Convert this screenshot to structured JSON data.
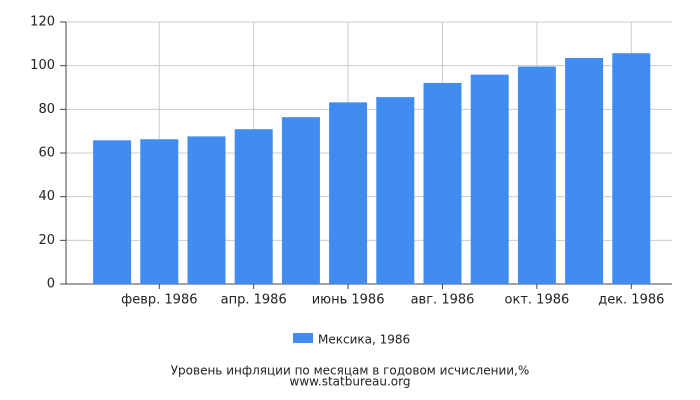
{
  "chart_data": {
    "type": "bar",
    "title": "Уровень инфляции по месяцам в годовом исчислении,%",
    "source": "www.statbureau.org",
    "categories": [
      null,
      "февр. 1986",
      null,
      "апр. 1986",
      null,
      "июнь 1986",
      null,
      "авг. 1986",
      null,
      "окт. 1986",
      null,
      "дек. 1986"
    ],
    "series": [
      {
        "name": "Мексика, 1986",
        "color": "#418cf0",
        "values": [
          65.8,
          66.3,
          67.6,
          70.9,
          76.4,
          83.2,
          85.6,
          92.1,
          95.9,
          99.6,
          103.5,
          105.7
        ]
      }
    ],
    "ylim": [
      0,
      120
    ],
    "yticks": [
      0,
      20,
      40,
      60,
      80,
      100,
      120
    ],
    "grid": true
  }
}
